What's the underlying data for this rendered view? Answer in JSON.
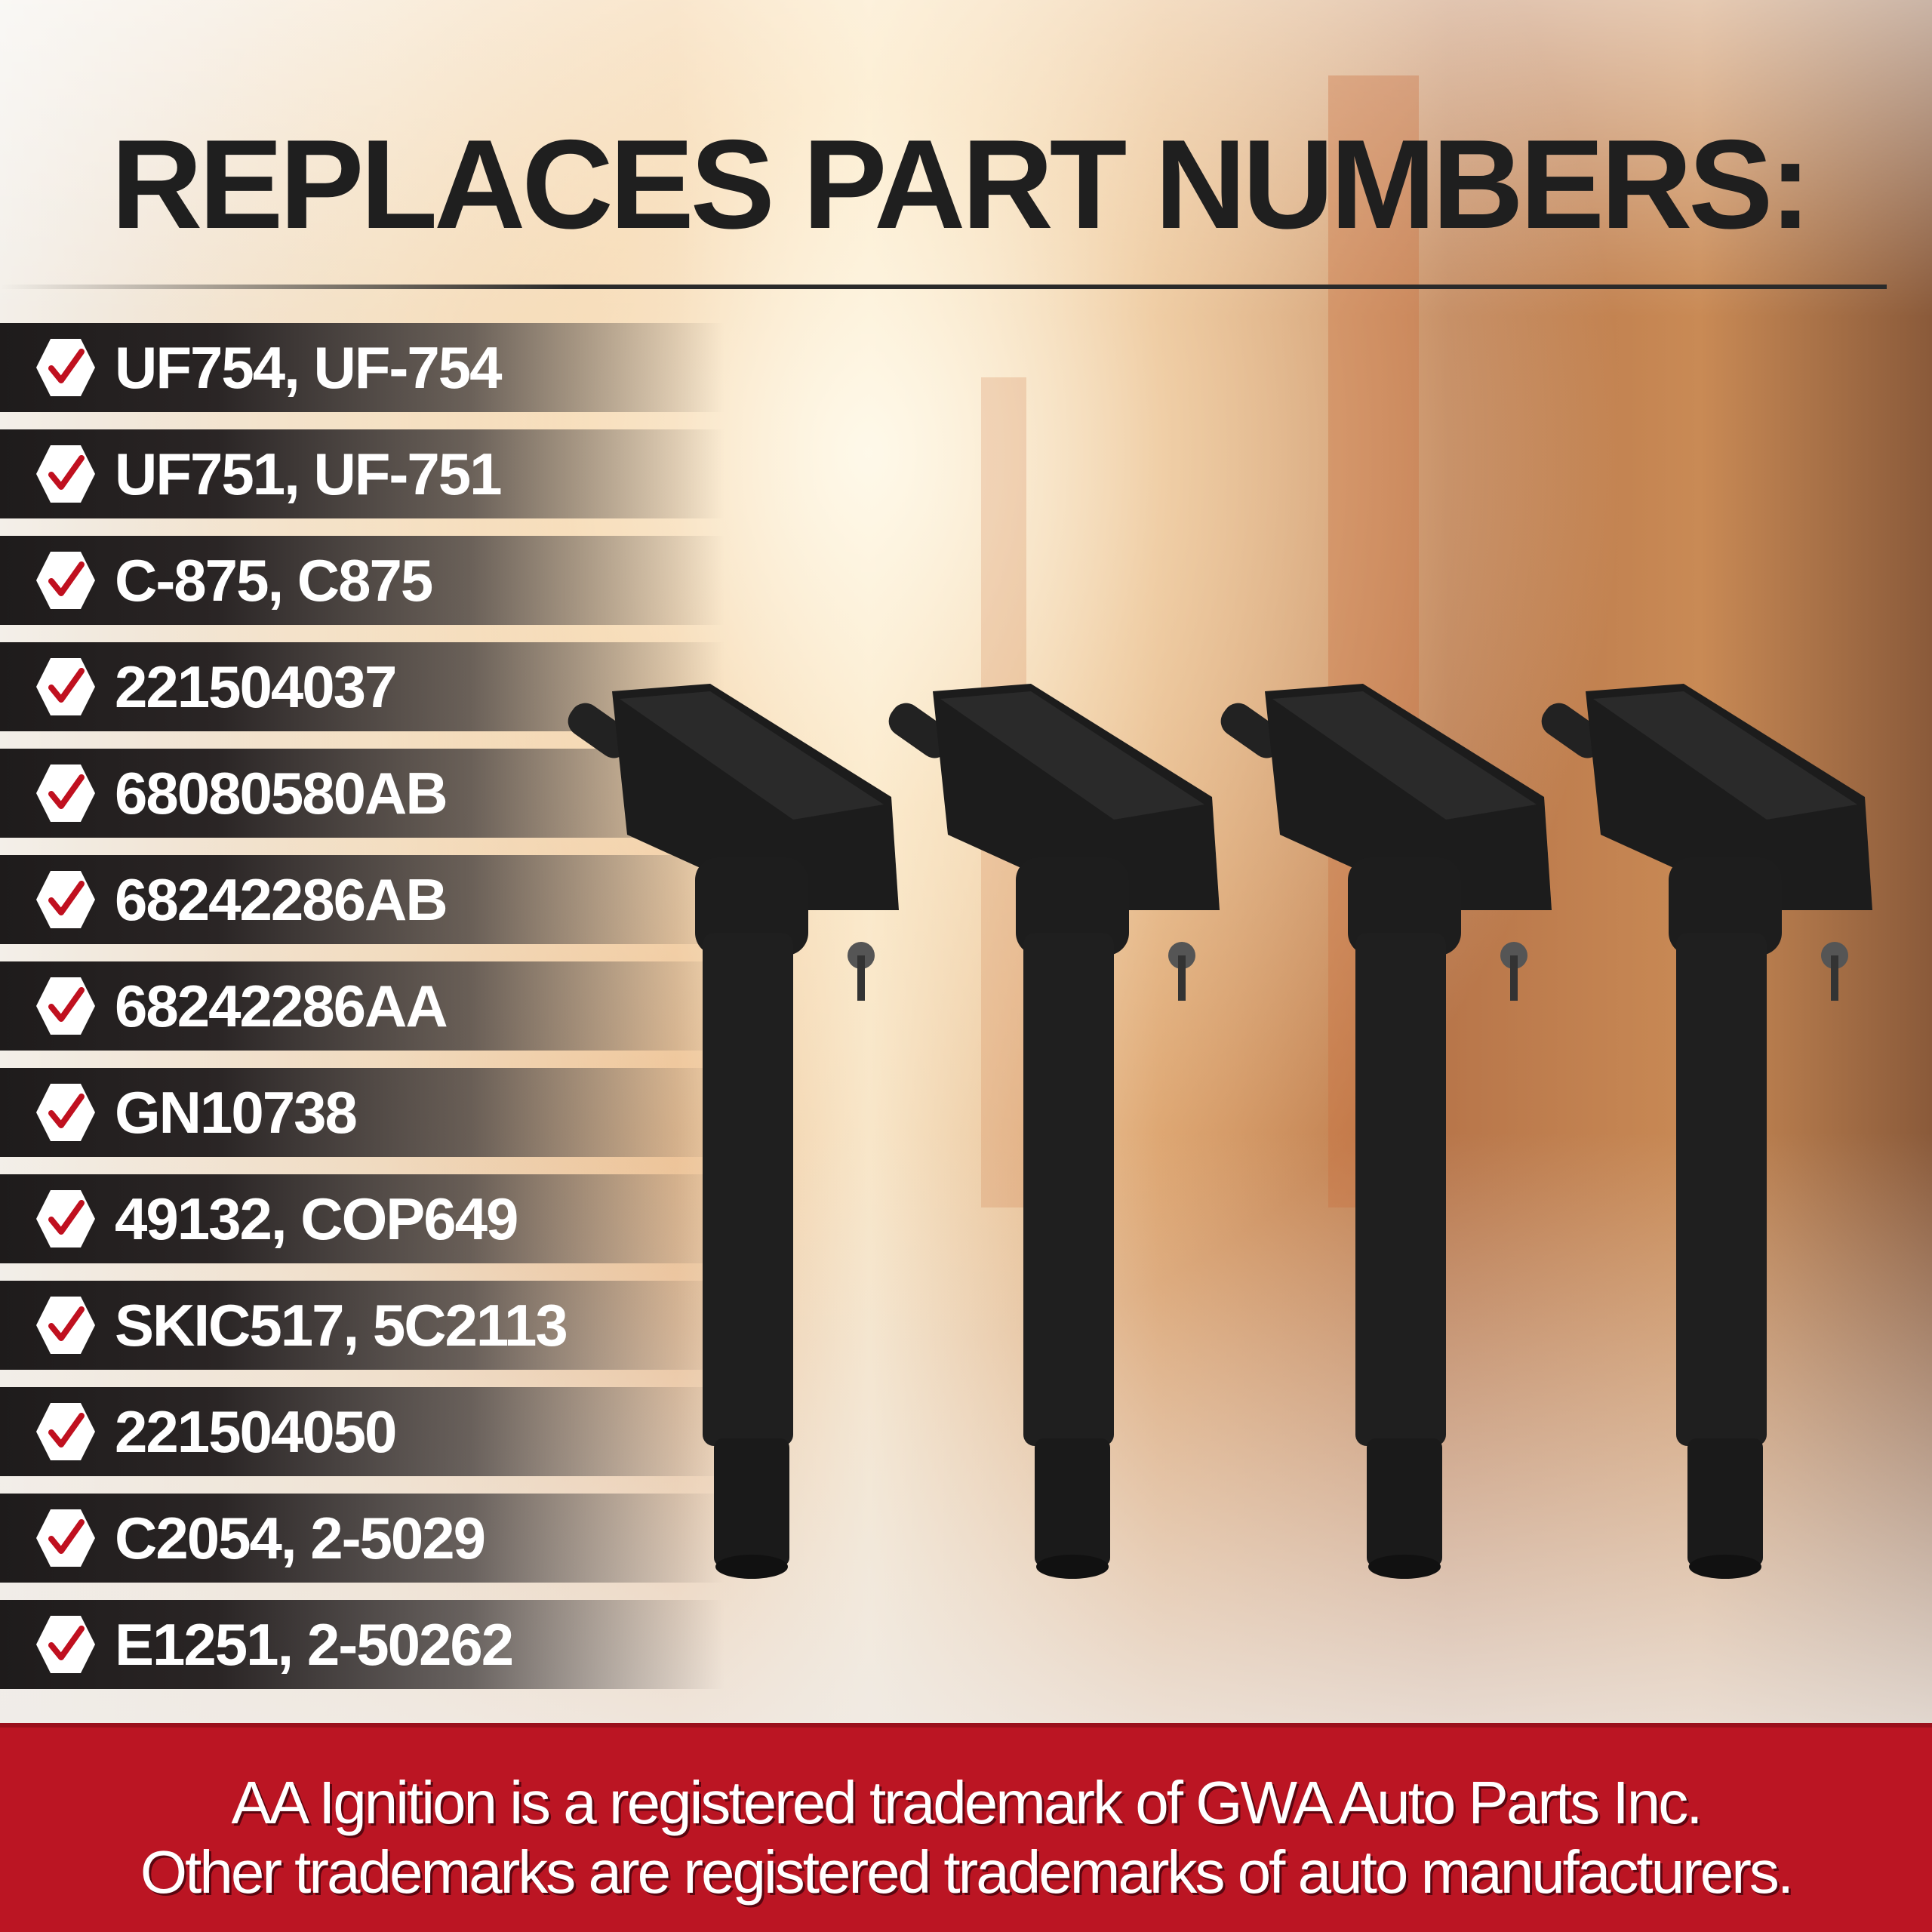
{
  "title": "REPLACES PART NUMBERS:",
  "part_numbers": [
    "UF754, UF-754",
    "UF751, UF-751",
    "C-875, C875",
    "221504037",
    "68080580AB",
    "68242286AB",
    "68242286AA",
    "GN10738",
    "49132, COP649",
    "SKIC517, 5C2113",
    "221504050",
    "C2054, 2-5029",
    "E1251, 2-50262"
  ],
  "footer": {
    "line1": "AA Ignition is a registered trademark of GWA Auto Parts Inc.",
    "line2": "Other trademarks are registered trademarks of auto manufacturers."
  },
  "colors": {
    "accent": "#bb1523",
    "row_bg": "#1e1b1b",
    "coil": "#1a1a1a"
  }
}
